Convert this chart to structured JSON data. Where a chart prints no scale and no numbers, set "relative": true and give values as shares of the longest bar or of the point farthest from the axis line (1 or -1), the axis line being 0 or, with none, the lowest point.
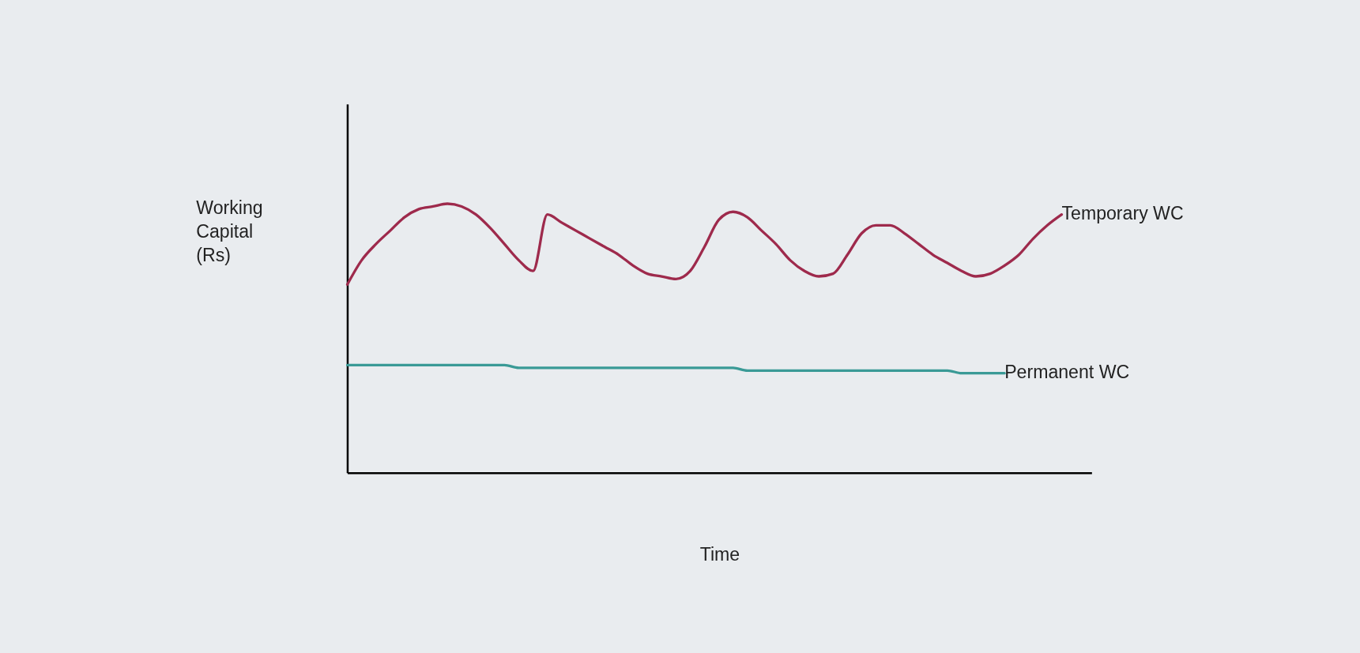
{
  "chart_data": {
    "type": "line",
    "relative": true,
    "xlabel": "Time",
    "ylabel": "Working Capital (Rs)",
    "legend": false,
    "grid": false,
    "tick_labels": false,
    "marker": "none",
    "line_style": "solid",
    "categories": [
      null,
      null,
      null,
      null,
      null,
      null,
      null,
      null,
      null,
      null,
      null,
      null,
      null,
      null,
      null,
      null,
      null,
      null,
      null,
      null,
      null,
      null,
      null,
      null,
      null,
      null,
      null,
      null,
      null,
      null,
      null,
      null,
      null,
      null,
      null,
      null,
      null,
      null,
      null,
      null,
      null,
      null,
      null,
      null,
      null,
      null,
      null,
      null,
      null,
      null,
      null,
      null,
      null
    ],
    "series": [
      {
        "name": "Temporary WC",
        "color": "#9e2a4c",
        "values": [
          0.7,
          0.79,
          0.85,
          0.9,
          0.95,
          0.98,
          0.99,
          1.0,
          0.99,
          0.96,
          0.91,
          0.85,
          0.79,
          0.75,
          0.96,
          0.93,
          0.9,
          0.87,
          0.84,
          0.81,
          0.77,
          0.74,
          0.73,
          0.72,
          0.75,
          0.84,
          0.94,
          0.97,
          0.95,
          0.9,
          0.85,
          0.79,
          0.75,
          0.73,
          0.74,
          0.81,
          0.89,
          0.92,
          0.92,
          0.89,
          0.85,
          0.81,
          0.78,
          0.75,
          0.73,
          0.74,
          0.77,
          0.81,
          0.87,
          0.92,
          0.96,
          null,
          null
        ]
      },
      {
        "name": "Permanent WC",
        "color": "#3a9a96",
        "values": [
          0.4,
          0.4,
          0.4,
          0.4,
          0.4,
          0.4,
          0.4,
          0.4,
          0.4,
          0.4,
          0.4,
          0.4,
          0.39,
          0.39,
          0.39,
          0.39,
          0.39,
          0.39,
          0.39,
          0.39,
          0.39,
          0.39,
          0.39,
          0.39,
          0.39,
          0.39,
          0.39,
          0.39,
          0.38,
          0.38,
          0.38,
          0.38,
          0.38,
          0.38,
          0.38,
          0.38,
          0.38,
          0.38,
          0.38,
          0.38,
          0.38,
          0.38,
          0.38,
          0.37,
          0.37,
          0.37,
          0.37,
          null,
          null,
          null,
          null,
          null,
          null
        ]
      }
    ]
  }
}
